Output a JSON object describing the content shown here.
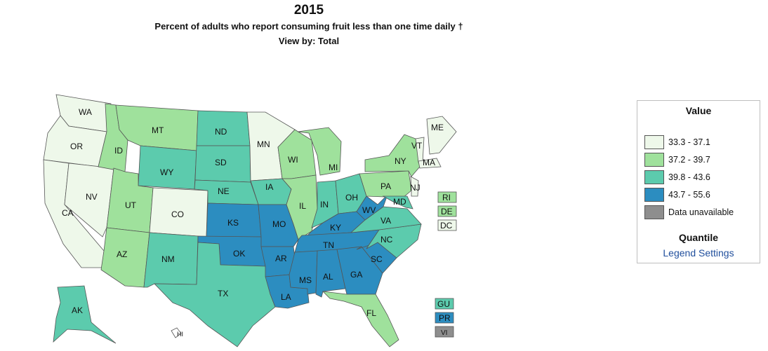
{
  "header": {
    "year": "2015",
    "subtitle": "Percent of adults who report consuming fruit less than one time daily †",
    "view_by": "View by: Total"
  },
  "legend": {
    "title": "Value",
    "items": [
      {
        "label": "33.3 - 37.1",
        "color": "#eef8ea"
      },
      {
        "label": "37.2 - 39.7",
        "color": "#9fe19c"
      },
      {
        "label": "39.8 - 43.6",
        "color": "#5ccbad"
      },
      {
        "label": "43.7 - 55.6",
        "color": "#2c8dc0"
      },
      {
        "label": "Data unavailable",
        "color": "#8e8e8e"
      }
    ],
    "method": "Quantile",
    "settings_link": "Legend Settings"
  },
  "map_data": {
    "class_colors": [
      "#eef8ea",
      "#9fe19c",
      "#5ccbad",
      "#2c8dc0",
      "#8e8e8e"
    ],
    "border_color": "#555555",
    "states": {
      "WA": 0,
      "OR": 0,
      "CA": 0,
      "NV": 0,
      "CO": 0,
      "MN": 0,
      "VT": 0,
      "ME": 0,
      "MA": 0,
      "NJ": 0,
      "DC": 0,
      "ID": 1,
      "MT": 1,
      "UT": 1,
      "AZ": 1,
      "WI": 1,
      "MI": 1,
      "IL": 1,
      "NY": 1,
      "PA": 1,
      "FL": 1,
      "RI": 1,
      "DE": 1,
      "WY": 2,
      "ND": 2,
      "SD": 2,
      "NE": 2,
      "IA": 2,
      "NM": 2,
      "TX": 2,
      "IN": 2,
      "OH": 2,
      "VA": 2,
      "NC": 2,
      "AK": 2,
      "GU": 2,
      "MD": 2,
      "KS": 3,
      "MO": 3,
      "OK": 3,
      "AR": 3,
      "LA": 3,
      "MS": 3,
      "AL": 3,
      "TN": 3,
      "KY": 3,
      "WV": 3,
      "GA": 3,
      "SC": 3,
      "PR": 3,
      "VI": 4
    },
    "labels": [
      "WA",
      "OR",
      "CA",
      "NV",
      "ID",
      "MT",
      "WY",
      "UT",
      "CO",
      "AZ",
      "NM",
      "ND",
      "SD",
      "NE",
      "KS",
      "OK",
      "TX",
      "MN",
      "IA",
      "MO",
      "AR",
      "LA",
      "WI",
      "IL",
      "MI",
      "IN",
      "OH",
      "KY",
      "TN",
      "MS",
      "AL",
      "GA",
      "FL",
      "SC",
      "NC",
      "VA",
      "WV",
      "PA",
      "NY",
      "VT",
      "ME",
      "MA",
      "NJ",
      "MD",
      "AK",
      "RI",
      "DE",
      "DC",
      "GU",
      "PR",
      "VI",
      "HI"
    ]
  }
}
